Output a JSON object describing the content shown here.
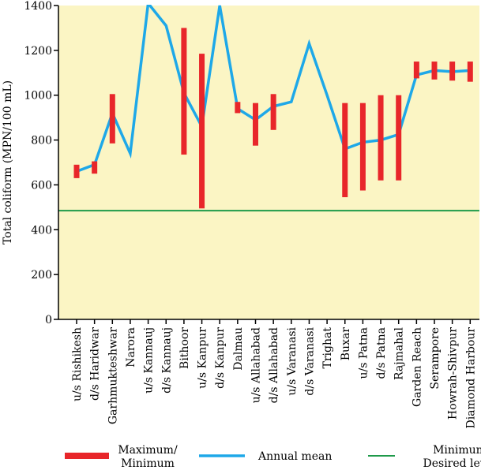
{
  "chart_data": {
    "type": "line",
    "ylabel": "Total coliform (MPN/100 mL)",
    "ylim": [
      0,
      1400
    ],
    "yticks": [
      0,
      200,
      400,
      600,
      800,
      1000,
      1200,
      1400
    ],
    "grid": false,
    "categories": [
      "u/s Rishikesh",
      "d/s Haridwar",
      "Garhmukteshwar",
      "Narora",
      "u/s Kannauj",
      "d/s Kannauj",
      "Bithoor",
      "u/s Kanpur",
      "d/s Kanpur",
      "Dalmau",
      "u/s Allahabad",
      "d/s Allahabad",
      "u/s Varanasi",
      "d/s Varanasi",
      "Trighat",
      "Buxar",
      "u/s Patna",
      "d/s Patna",
      "Rajmahal",
      "Garden Reach",
      "Serampore",
      "Howrah-Shivpur",
      "Diamond Harbour"
    ],
    "series": [
      {
        "name": "Annual mean",
        "type": "line",
        "color": "#1ea8e8",
        "values": [
          660,
          690,
          920,
          740,
          1410,
          1310,
          1010,
          860,
          1400,
          940,
          890,
          950,
          970,
          1230,
          1000,
          760,
          790,
          800,
          825,
          1090,
          1110,
          1105,
          1110
        ]
      },
      {
        "name": "Maximum/ Minimum",
        "type": "range",
        "color": "#e8262a",
        "ranges": [
          [
            630,
            690
          ],
          [
            650,
            705
          ],
          [
            785,
            1005
          ],
          null,
          null,
          null,
          [
            735,
            1300
          ],
          [
            495,
            1185
          ],
          null,
          [
            920,
            970
          ],
          [
            775,
            965
          ],
          [
            845,
            1005
          ],
          null,
          null,
          null,
          [
            545,
            965
          ],
          [
            575,
            965
          ],
          [
            620,
            1000
          ],
          [
            620,
            1000
          ],
          [
            1075,
            1150
          ],
          [
            1070,
            1150
          ],
          [
            1065,
            1150
          ],
          [
            1060,
            1150
          ]
        ]
      },
      {
        "name": "Minimum Desired level",
        "type": "reference",
        "color": "#1f9a4a",
        "value": 485
      }
    ],
    "legend": {
      "placement": "bottom",
      "items": [
        {
          "label_lines": [
            "Maximum/",
            "Minimum"
          ],
          "color": "#e8262a",
          "swatch": "thick-bar"
        },
        {
          "label_lines": [
            "Annual mean"
          ],
          "color": "#1ea8e8",
          "swatch": "line"
        },
        {
          "label_lines": [
            "Minimum",
            "Desired level"
          ],
          "color": "#1f9a4a",
          "swatch": "thin-line"
        }
      ]
    },
    "plot_background": "#fbf5c4"
  }
}
